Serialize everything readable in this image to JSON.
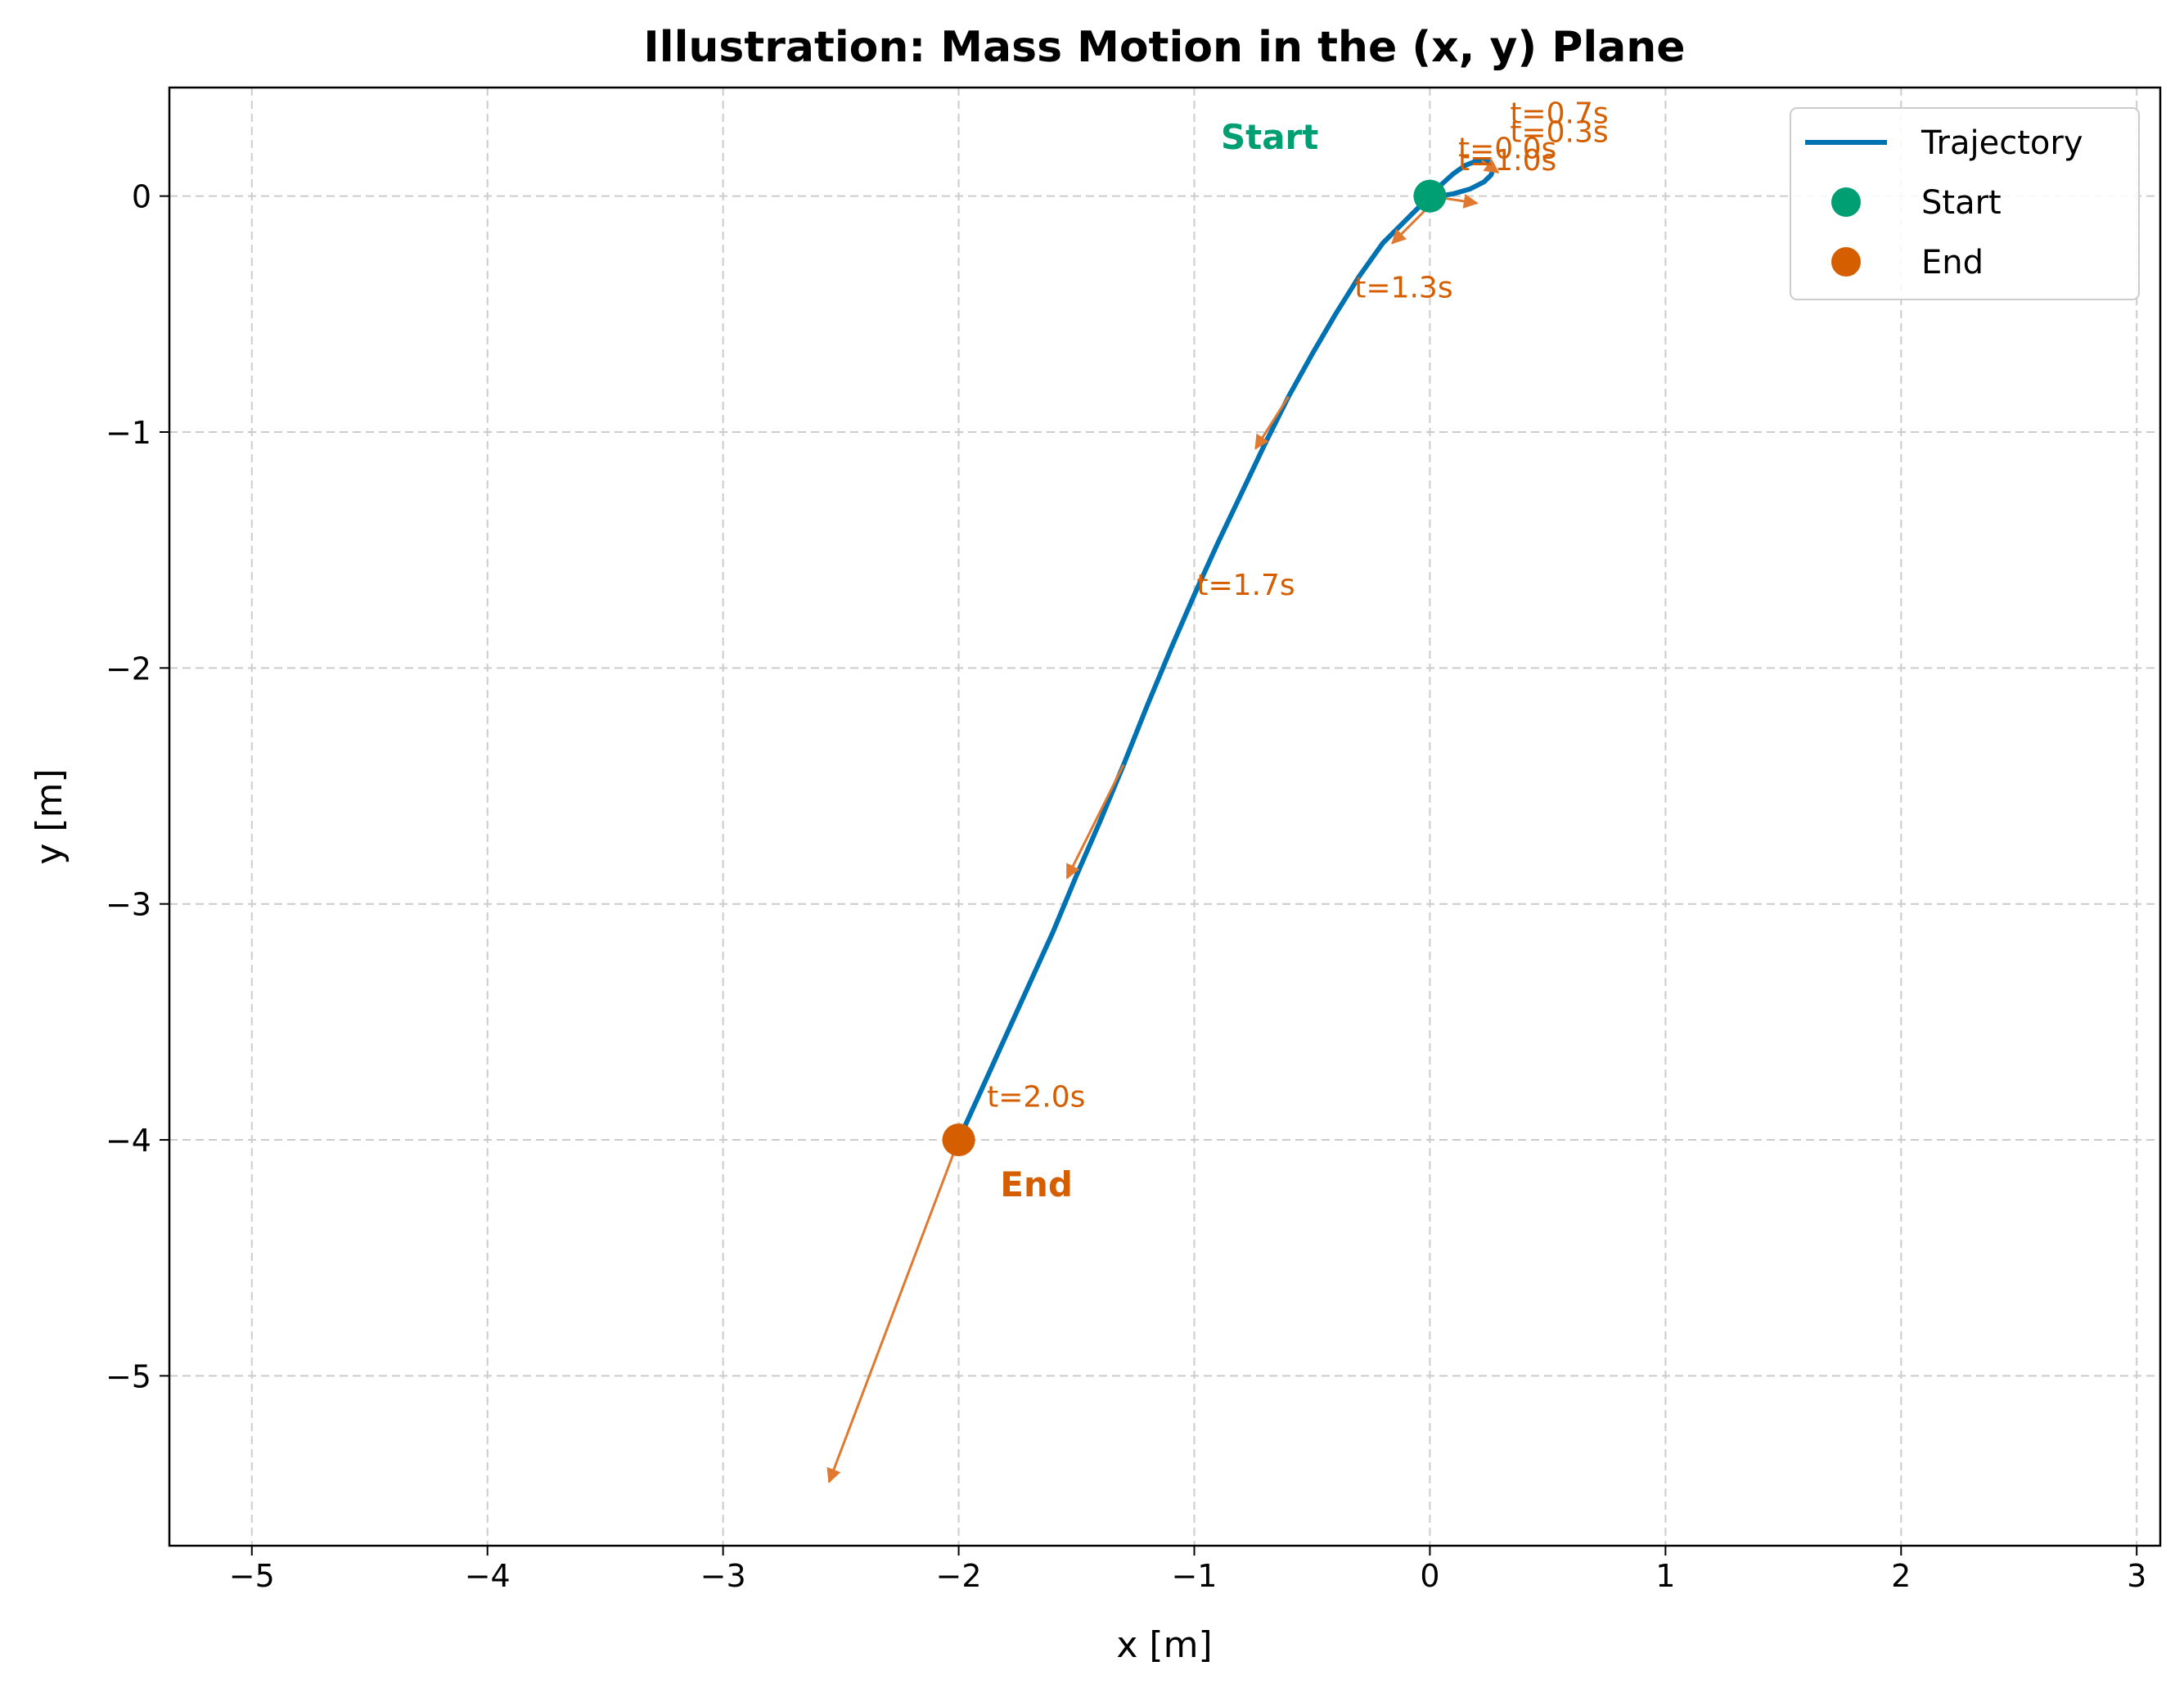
{
  "chart_data": {
    "type": "line",
    "title": "Illustration: Mass Motion in the (x, y) Plane",
    "xlabel": "x [m]",
    "ylabel": "y [m]",
    "xlim": [
      -5.35,
      3.1
    ],
    "ylim": [
      -5.72,
      0.46
    ],
    "grid": true,
    "legend_position": "top-right",
    "xticks": [
      -5,
      -4,
      -3,
      -2,
      -1,
      0,
      1,
      2,
      3
    ],
    "xtick_labels": [
      "−5",
      "−4",
      "−3",
      "−2",
      "−1",
      "0",
      "1",
      "2",
      "3"
    ],
    "yticks": [
      0,
      -1,
      -2,
      -3,
      -4,
      -5
    ],
    "ytick_labels": [
      "0",
      "−1",
      "−2",
      "−3",
      "−4",
      "−5"
    ],
    "colors": {
      "trajectory": "#0072b2",
      "start": "#009e73",
      "end": "#d55e00",
      "vectors": "#e07830"
    },
    "series": [
      {
        "name": "Trajectory",
        "role": "line",
        "points": [
          [
            0,
            0
          ],
          [
            0.05,
            0.05
          ],
          [
            0.1,
            0.095
          ],
          [
            0.15,
            0.13
          ],
          [
            0.2,
            0.15
          ],
          [
            0.24,
            0.15
          ],
          [
            0.26,
            0.14
          ],
          [
            0.27,
            0.12
          ],
          [
            0.26,
            0.09
          ],
          [
            0.23,
            0.06
          ],
          [
            0.17,
            0.03
          ],
          [
            0.1,
            0.01
          ],
          [
            0.04,
            0.0
          ],
          [
            0,
            0
          ],
          [
            -0.05,
            -0.05
          ],
          [
            -0.1,
            -0.1
          ],
          [
            -0.2,
            -0.2
          ],
          [
            -0.3,
            -0.34
          ],
          [
            -0.4,
            -0.5
          ],
          [
            -0.5,
            -0.67
          ],
          [
            -0.6,
            -0.85
          ],
          [
            -0.7,
            -1.05
          ],
          [
            -0.8,
            -1.26
          ],
          [
            -0.9,
            -1.47
          ],
          [
            -1.0,
            -1.69
          ],
          [
            -1.1,
            -1.92
          ],
          [
            -1.2,
            -2.16
          ],
          [
            -1.3,
            -2.41
          ],
          [
            -1.4,
            -2.65
          ],
          [
            -1.5,
            -2.88
          ],
          [
            -1.6,
            -3.12
          ],
          [
            -1.7,
            -3.34
          ],
          [
            -1.8,
            -3.56
          ],
          [
            -1.9,
            -3.78
          ],
          [
            -2.0,
            -4.0
          ]
        ]
      },
      {
        "name": "Start",
        "role": "marker",
        "x": 0,
        "y": 0
      },
      {
        "name": "End",
        "role": "marker",
        "x": -2,
        "y": -4
      }
    ],
    "velocity_vectors": [
      {
        "x": 0.0,
        "y": 0.0,
        "dx": 0.2,
        "dy": -0.03
      },
      {
        "x": 0.22,
        "y": 0.15,
        "dx": 0.07,
        "dy": -0.05
      },
      {
        "x": 0.04,
        "y": 0.0,
        "dx": -0.2,
        "dy": -0.2
      },
      {
        "x": -0.6,
        "y": -0.85,
        "dx": -0.14,
        "dy": -0.22
      },
      {
        "x": -1.3,
        "y": -2.41,
        "dx": -0.24,
        "dy": -0.48
      },
      {
        "x": -2.0,
        "y": -4.0,
        "dx": -0.55,
        "dy": -1.45
      }
    ],
    "time_labels": [
      {
        "text": "t=0.7s",
        "x": 0.34,
        "y": 0.31
      },
      {
        "text": "t=0.3s",
        "x": 0.34,
        "y": 0.23
      },
      {
        "text": "t=0.0s",
        "x": 0.12,
        "y": 0.16
      },
      {
        "text": "t=1.0s",
        "x": 0.12,
        "y": 0.11
      },
      {
        "text": "t=1.3s",
        "x": -0.32,
        "y": -0.43
      },
      {
        "text": "t=1.7s",
        "x": -0.99,
        "y": -1.69
      },
      {
        "text": "t=2.0s",
        "x": -1.88,
        "y": -3.86
      }
    ],
    "point_labels": [
      {
        "text": "Start",
        "x": -0.68,
        "y": 0.2,
        "color_key": "start"
      },
      {
        "text": "End",
        "x": -1.67,
        "y": -4.24,
        "color_key": "end"
      }
    ],
    "legend": [
      {
        "label": "Trajectory",
        "kind": "line",
        "color_key": "trajectory"
      },
      {
        "label": "Start",
        "kind": "dot",
        "color_key": "start"
      },
      {
        "label": "End",
        "kind": "dot",
        "color_key": "end"
      }
    ]
  }
}
